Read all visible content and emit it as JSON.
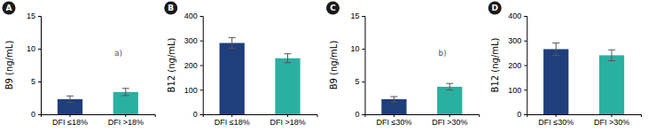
{
  "chart_data": [
    {
      "type": "bar",
      "title": "A",
      "ylabel": "B9 (ng/mL)",
      "categories": [
        "DFI ≤18%",
        "DFI >18%"
      ],
      "values": [
        2.3,
        3.4
      ],
      "errors": [
        0.5,
        0.55
      ],
      "colors": [
        "#1f3e7c",
        "#2ab0a0"
      ],
      "ylim": [
        0,
        15
      ],
      "yticks": [
        0,
        5,
        10,
        15
      ],
      "annotation": "a)"
    },
    {
      "type": "bar",
      "title": "B",
      "ylabel": "B12 (ng/mL)",
      "categories": [
        "DFI ≤18%",
        "DFI >18%"
      ],
      "values": [
        290,
        228
      ],
      "errors": [
        22,
        18
      ],
      "colors": [
        "#1f3e7c",
        "#2ab0a0"
      ],
      "ylim": [
        0,
        400
      ],
      "yticks": [
        0,
        100,
        200,
        300,
        400
      ]
    },
    {
      "type": "bar",
      "title": "C",
      "ylabel": "B9 (ng/mL)",
      "categories": [
        "DFI ≤30%",
        "DFI >30%"
      ],
      "values": [
        2.3,
        4.2
      ],
      "errors": [
        0.4,
        0.5
      ],
      "colors": [
        "#1f3e7c",
        "#2ab0a0"
      ],
      "ylim": [
        0,
        15
      ],
      "yticks": [
        0,
        5,
        10,
        15
      ],
      "annotation": "b)"
    },
    {
      "type": "bar",
      "title": "D",
      "ylabel": "B12 (ng/mL)",
      "categories": [
        "DFI ≤30%",
        "DFI >30%"
      ],
      "values": [
        265,
        240
      ],
      "errors": [
        25,
        22
      ],
      "colors": [
        "#1f3e7c",
        "#2ab0a0"
      ],
      "ylim": [
        0,
        400
      ],
      "yticks": [
        0,
        100,
        200,
        300,
        400
      ]
    }
  ]
}
